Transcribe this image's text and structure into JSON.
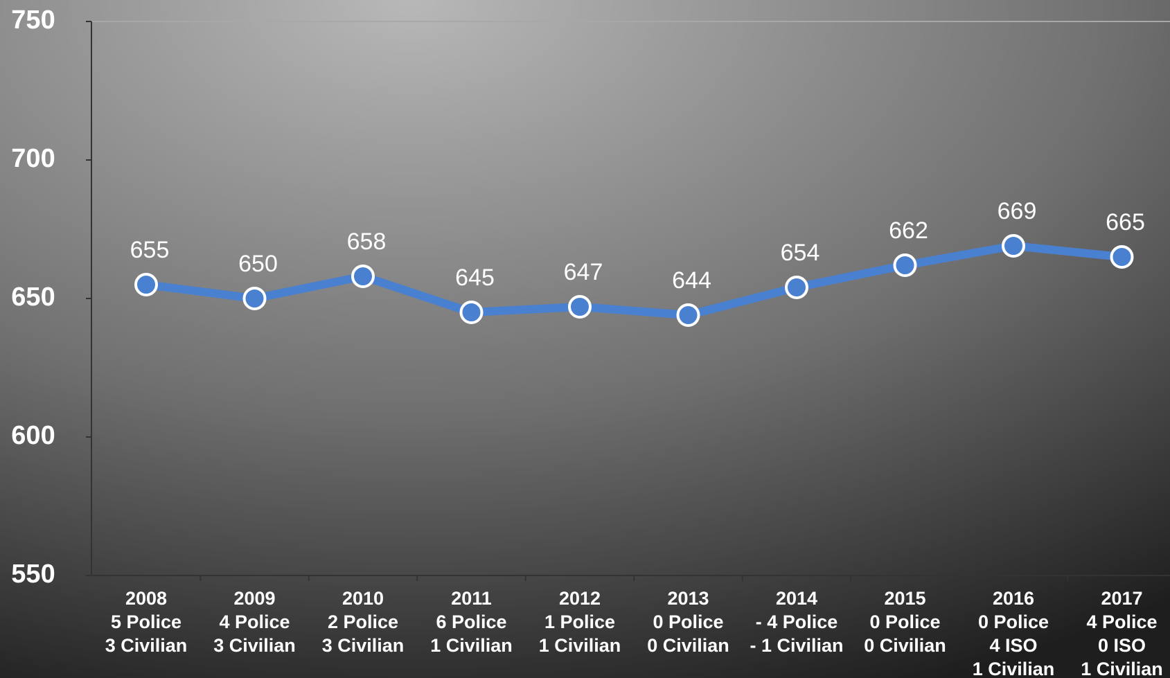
{
  "chart_data": {
    "type": "line",
    "categories": [
      [
        "2008",
        "5 Police",
        "3 Civilian"
      ],
      [
        "2009",
        "4 Police",
        "3 Civilian"
      ],
      [
        "2010",
        "2 Police",
        "3 Civilian"
      ],
      [
        "2011",
        "6 Police",
        "1 Civilian"
      ],
      [
        "2012",
        "1 Police",
        "1 Civilian"
      ],
      [
        "2013",
        "0 Police",
        "0 Civilian"
      ],
      [
        "2014",
        "- 4 Police",
        "- 1 Civilian"
      ],
      [
        "2015",
        "0 Police",
        "0 Civilian"
      ],
      [
        "2016",
        "0 Police",
        "4 ISO",
        "1 Civilian"
      ],
      [
        "2017",
        "4 Police",
        "0 ISO",
        "1 Civilian"
      ]
    ],
    "series": [
      {
        "color": "#4a80d0",
        "values": [
          655,
          650,
          658,
          645,
          647,
          644,
          654,
          662,
          669,
          665
        ]
      }
    ],
    "ylim": [
      550,
      750
    ],
    "yticks": [
      550,
      600,
      650,
      700,
      750
    ],
    "grid": false
  }
}
